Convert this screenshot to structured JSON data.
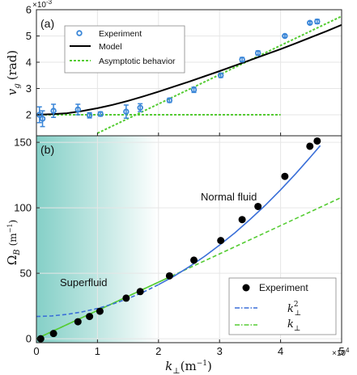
{
  "chart_data": [
    {
      "type": "scatter",
      "panel_label": "(a)",
      "xlim": [
        0,
        50000
      ],
      "ylim": [
        1.2,
        6
      ],
      "yticks": [
        "2",
        "3",
        "4",
        "5",
        "6"
      ],
      "y_exponent": "×10",
      "y_exponent_power": "-3",
      "ylabel_main": "v",
      "ylabel_sub": "g",
      "ylabel_unit": "(rad)",
      "grid": true,
      "legend_position": "top-left",
      "series": [
        {
          "name": "Experiment",
          "color": "#3a86d8",
          "x": [
            500,
            1000,
            2800,
            6800,
            8700,
            10500,
            14700,
            17000,
            21800,
            25800,
            30200,
            33700,
            36300,
            40700,
            44800,
            46000
          ],
          "y": [
            2.0,
            1.85,
            2.15,
            2.2,
            1.98,
            2.03,
            2.12,
            2.27,
            2.55,
            2.95,
            3.5,
            4.1,
            4.35,
            5.0,
            5.5,
            5.55
          ],
          "err": [
            0.3,
            0.3,
            0.25,
            0.2,
            0.1,
            0.08,
            0.25,
            0.15,
            0.08,
            0.1,
            0.08,
            0.08,
            0.08,
            0.05,
            0.05,
            0.08
          ]
        },
        {
          "name": "Model",
          "color": "#000000",
          "x": [
            0,
            2500,
            5000,
            7500,
            10000,
            12500,
            15000,
            17500,
            20000,
            22500,
            25000,
            27500,
            30000,
            32500,
            35000,
            37500,
            40000,
            42500,
            45000,
            47500,
            50000
          ],
          "y": [
            2.0,
            2.02,
            2.06,
            2.14,
            2.25,
            2.38,
            2.53,
            2.7,
            2.88,
            3.07,
            3.26,
            3.46,
            3.66,
            3.87,
            4.08,
            4.29,
            4.5,
            4.72,
            4.95,
            5.18,
            5.42
          ]
        },
        {
          "name": "Asymptotic behavior",
          "color": "#55cc33",
          "dashed": true,
          "x": [
            10000,
            50000
          ],
          "y": [
            1.3,
            5.75
          ]
        },
        {
          "name": "",
          "color": "#55cc33",
          "dashed": true,
          "x": [
            0,
            40000
          ],
          "y": [
            2.0,
            2.0
          ]
        }
      ]
    },
    {
      "type": "scatter",
      "panel_label": "(b)",
      "xlim": [
        0,
        50000
      ],
      "ylim": [
        -3,
        155
      ],
      "xticks": [
        "0",
        "1",
        "2",
        "3",
        "4",
        "5"
      ],
      "yticks": [
        "0",
        "50",
        "100",
        "150"
      ],
      "x_exponent": "×10",
      "x_exponent_power": "4",
      "xlabel_main": "k",
      "xlabel_sub": "⊥",
      "xlabel_unit": "(m",
      "xlabel_unit_power": "−1",
      "xlabel_unit_close": ")",
      "ylabel_main": "Ω",
      "ylabel_sub": "B",
      "ylabel_unit": "(m",
      "ylabel_unit_power": "−1",
      "ylabel_unit_close": ")",
      "grid": true,
      "legend_position": "bottom-right",
      "regions": {
        "superfluid": "Superfluid",
        "normal": "Normal fluid",
        "shade_color": "#7ecdc4",
        "shade_x_end": 20000
      },
      "series": [
        {
          "name": "Experiment",
          "color": "#000000",
          "x": [
            700,
            2800,
            6800,
            8700,
            10400,
            14700,
            17000,
            21800,
            25800,
            30200,
            33700,
            36300,
            40700,
            44800,
            46000
          ],
          "y": [
            0,
            4,
            13,
            17,
            21,
            31,
            36,
            48,
            60,
            75,
            91,
            101,
            124,
            147,
            151
          ]
        },
        {
          "name": "k²⊥",
          "label_main": "k",
          "label_sup": "2",
          "label_sub": "⊥",
          "color": "#3a6fd8",
          "x": [
            0,
            2500,
            5000,
            7500,
            10000,
            12500,
            15000,
            17500,
            20000,
            22500,
            25000,
            27500,
            30000,
            32500,
            35000,
            37500,
            40000,
            42500,
            45000,
            46500
          ],
          "y": [
            17,
            17.4,
            18.6,
            20.5,
            23.1,
            26.5,
            30.7,
            35.6,
            41.3,
            47.7,
            54.9,
            62.8,
            71.5,
            80.9,
            91.1,
            102,
            113.7,
            126.1,
            139.3,
            147.5
          ]
        },
        {
          "name": "k⊥",
          "label_main": "k",
          "label_sub": "⊥",
          "color": "#55cc33",
          "x": [
            0,
            50000
          ],
          "y": [
            0,
            108
          ]
        }
      ]
    }
  ]
}
